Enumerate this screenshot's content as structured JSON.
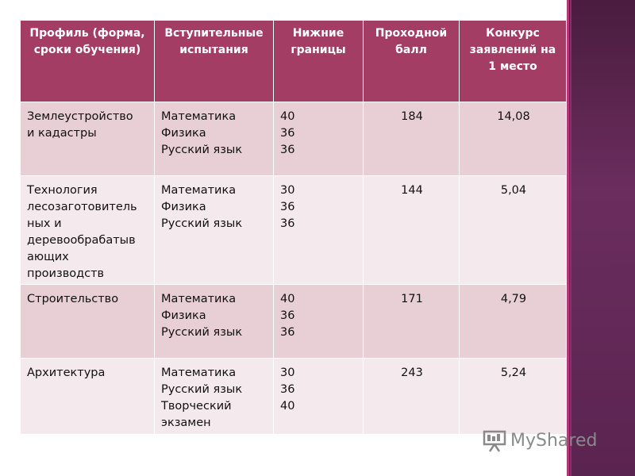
{
  "table": {
    "headers": [
      "Профиль (форма, сроки обучения)",
      "Вступительные испытания",
      "Нижние границы",
      "Проходной балл",
      "Конкурс заявлений на 1 место"
    ],
    "rows": [
      {
        "profile": [
          "Землеустройство",
          "и кадастры"
        ],
        "exams": [
          "Математика",
          "Физика",
          "Русский язык"
        ],
        "lower_bounds": [
          "40",
          "36",
          "36"
        ],
        "passing_score": "184",
        "competition": "14,08"
      },
      {
        "profile": [
          "Технология",
          "лесозаготовитель",
          "ных и",
          "деревообрабатыв",
          "ающих",
          "производств"
        ],
        "exams": [
          "Математика",
          "Физика",
          "Русский язык"
        ],
        "lower_bounds": [
          "30",
          "36",
          "36"
        ],
        "passing_score": "144",
        "competition": "5,04"
      },
      {
        "profile": [
          "Строительство"
        ],
        "exams": [
          "Математика",
          "Физика",
          "Русский язык"
        ],
        "lower_bounds": [
          "40",
          "36",
          "36"
        ],
        "passing_score": "171",
        "competition": "4,79"
      },
      {
        "profile": [
          "Архитектура"
        ],
        "exams": [
          "Математика",
          "Русский язык",
          "Творческий",
          "экзамен"
        ],
        "lower_bounds": [
          "30",
          "36",
          "40"
        ],
        "passing_score": "243",
        "competition": "5,24"
      }
    ]
  },
  "watermark": {
    "text": "MyShared",
    "icon": "projector-screen-icon"
  },
  "colors": {
    "header_bg": "#a33d64",
    "row_odd_bg": "#e8cfd6",
    "row_even_bg": "#f4e9ec",
    "side_bar": "#6b2d5e"
  }
}
